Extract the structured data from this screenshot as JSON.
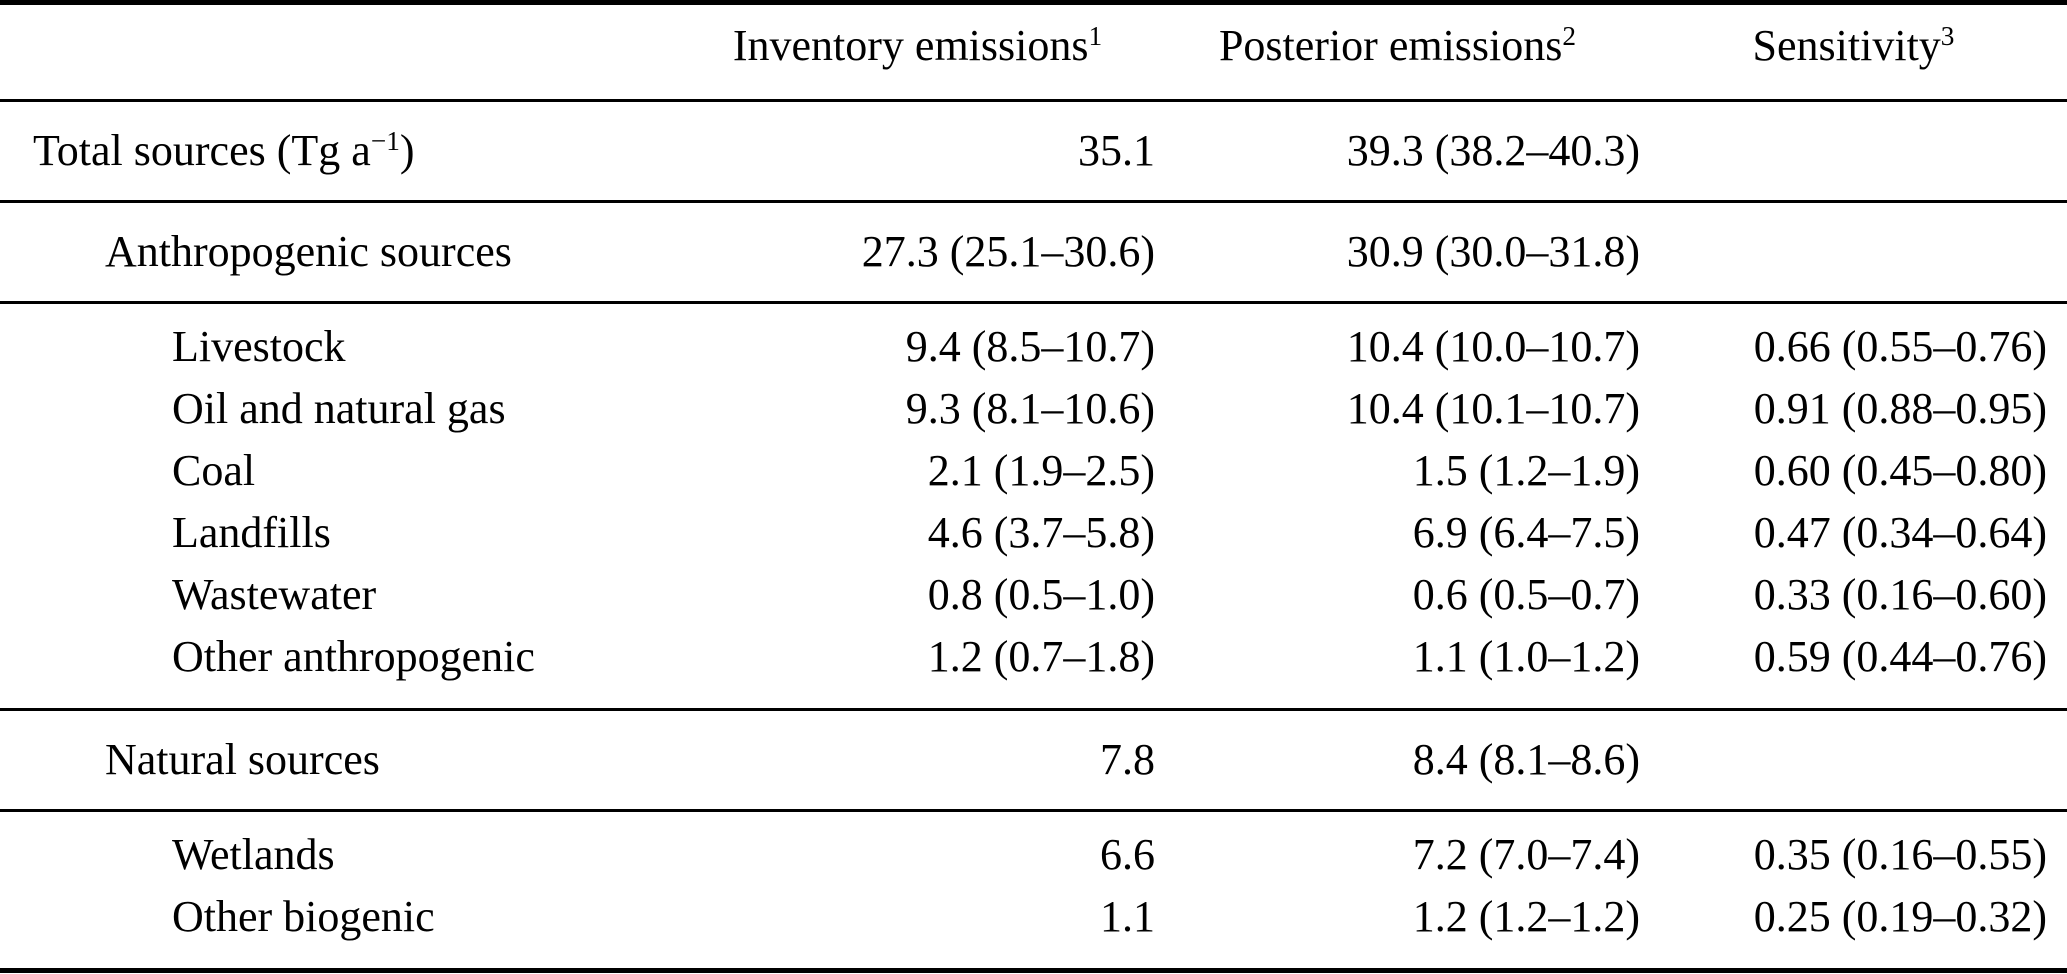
{
  "page": {
    "background_color": "#ffffff",
    "text_color": "#000000"
  },
  "table": {
    "columns": [
      {
        "label": "",
        "footnote": ""
      },
      {
        "label": "Inventory emissions",
        "footnote": "1"
      },
      {
        "label": "Posterior emissions",
        "footnote": "2"
      },
      {
        "label": "Sensitivity",
        "footnote": "3"
      }
    ],
    "rows": [
      {
        "label": "Total sources (Tg a",
        "label_sup": "−1",
        "label_end": ")",
        "indent": 0,
        "inventory": "35.1",
        "posterior": "39.3 (38.2–40.3)",
        "sensitivity": ""
      },
      {
        "label": "Anthropogenic sources",
        "indent": 1,
        "inventory": "27.3 (25.1–30.6)",
        "posterior": "30.9 (30.0–31.8)",
        "sensitivity": ""
      },
      {
        "label": "Livestock",
        "indent": 2,
        "inventory": "9.4 (8.5–10.7)",
        "posterior": "10.4 (10.0–10.7)",
        "sensitivity": "0.66 (0.55–0.76)"
      },
      {
        "label": "Oil and natural gas",
        "indent": 2,
        "inventory": "9.3 (8.1–10.6)",
        "posterior": "10.4 (10.1–10.7)",
        "sensitivity": "0.91 (0.88–0.95)"
      },
      {
        "label": "Coal",
        "indent": 2,
        "inventory": "2.1 (1.9–2.5)",
        "posterior": "1.5 (1.2–1.9)",
        "sensitivity": "0.60 (0.45–0.80)"
      },
      {
        "label": "Landfills",
        "indent": 2,
        "inventory": "4.6 (3.7–5.8)",
        "posterior": "6.9 (6.4–7.5)",
        "sensitivity": "0.47 (0.34–0.64)"
      },
      {
        "label": "Wastewater",
        "indent": 2,
        "inventory": "0.8 (0.5–1.0)",
        "posterior": "0.6 (0.5–0.7)",
        "sensitivity": "0.33 (0.16–0.60)"
      },
      {
        "label": "Other anthropogenic",
        "indent": 2,
        "inventory": "1.2 (0.7–1.8)",
        "posterior": "1.1 (1.0–1.2)",
        "sensitivity": "0.59 (0.44–0.76)"
      },
      {
        "label": "Natural sources",
        "indent": 1,
        "inventory": "7.8",
        "posterior": "8.4 (8.1–8.6)",
        "sensitivity": ""
      },
      {
        "label": "Wetlands",
        "indent": 2,
        "inventory": "6.6",
        "posterior": "7.2 (7.0–7.4)",
        "sensitivity": "0.35 (0.16–0.55)"
      },
      {
        "label": "Other biogenic",
        "indent": 2,
        "inventory": "1.1",
        "posterior": "1.2 (1.2–1.2)",
        "sensitivity": "0.25 (0.19–0.32)"
      }
    ]
  }
}
